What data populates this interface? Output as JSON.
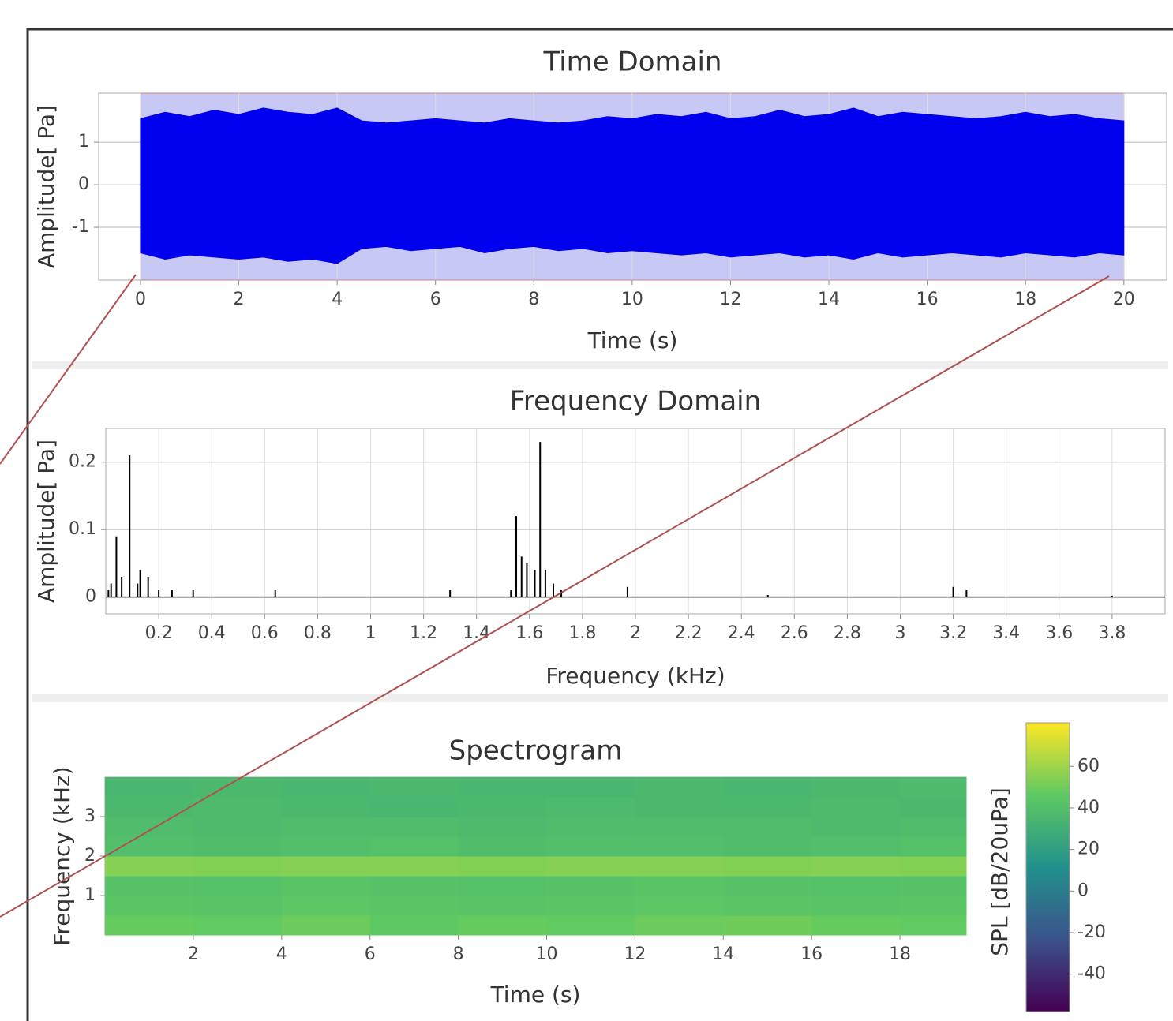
{
  "chart_data": [
    {
      "type": "envelope",
      "title": "Time Domain",
      "x_label": "Time (s)",
      "y_label": "Amplitude[ Pa]",
      "x": [
        0,
        0.5,
        1,
        1.5,
        2,
        2.5,
        3,
        3.5,
        4,
        4.5,
        5,
        5.5,
        6,
        6.5,
        7,
        7.5,
        8,
        8.5,
        9,
        9.5,
        10,
        10.5,
        11,
        11.5,
        12,
        12.5,
        13,
        13.5,
        14,
        14.5,
        15,
        15.5,
        16,
        16.5,
        17,
        17.5,
        18,
        18.5,
        19,
        19.5,
        20
      ],
      "upper": [
        1.55,
        1.7,
        1.6,
        1.75,
        1.65,
        1.8,
        1.7,
        1.65,
        1.8,
        1.5,
        1.45,
        1.5,
        1.55,
        1.5,
        1.45,
        1.55,
        1.5,
        1.45,
        1.5,
        1.6,
        1.55,
        1.65,
        1.6,
        1.7,
        1.55,
        1.6,
        1.75,
        1.6,
        1.65,
        1.8,
        1.6,
        1.7,
        1.65,
        1.6,
        1.55,
        1.6,
        1.7,
        1.6,
        1.65,
        1.55,
        1.5
      ],
      "lower": [
        -1.6,
        -1.75,
        -1.65,
        -1.7,
        -1.75,
        -1.7,
        -1.8,
        -1.75,
        -1.85,
        -1.5,
        -1.45,
        -1.55,
        -1.5,
        -1.45,
        -1.6,
        -1.5,
        -1.45,
        -1.55,
        -1.5,
        -1.6,
        -1.55,
        -1.6,
        -1.65,
        -1.6,
        -1.7,
        -1.65,
        -1.6,
        -1.7,
        -1.65,
        -1.75,
        -1.6,
        -1.7,
        -1.65,
        -1.6,
        -1.65,
        -1.7,
        -1.6,
        -1.65,
        -1.7,
        -1.6,
        -1.65
      ],
      "color": "#0000ee",
      "selection": [
        0,
        20
      ],
      "selection_color": "#c8c8f4",
      "xlim": [
        -0.85,
        20.87
      ],
      "ylim": [
        -2.24,
        2.15
      ],
      "xticks": [
        0,
        2,
        4,
        6,
        8,
        10,
        12,
        14,
        16,
        18,
        20
      ],
      "yticks": [
        -1,
        0,
        1
      ],
      "grid": true
    },
    {
      "type": "stem",
      "title": "Frequency Domain",
      "x_label": "Frequency (kHz)",
      "y_label": "Amplitude[ Pa]",
      "x": [
        0.01,
        0.02,
        0.04,
        0.06,
        0.09,
        0.12,
        0.13,
        0.16,
        0.2,
        0.25,
        0.33,
        0.64,
        1.3,
        1.53,
        1.55,
        1.57,
        1.59,
        1.62,
        1.64,
        1.66,
        1.69,
        1.72,
        1.97,
        2.5,
        3.2,
        3.25,
        3.8
      ],
      "values": [
        0.01,
        0.02,
        0.09,
        0.03,
        0.21,
        0.02,
        0.04,
        0.03,
        0.01,
        0.01,
        0.01,
        0.01,
        0.01,
        0.01,
        0.12,
        0.06,
        0.05,
        0.04,
        0.23,
        0.04,
        0.02,
        0.01,
        0.015,
        0.003,
        0.015,
        0.01,
        0.002
      ],
      "color": "#000000",
      "xlim": [
        0,
        4.0
      ],
      "ylim": [
        -0.025,
        0.25
      ],
      "xticks": [
        0.2,
        0.4,
        0.6,
        0.8,
        1,
        1.2,
        1.4,
        1.6,
        1.8,
        2,
        2.2,
        2.4,
        2.6,
        2.8,
        3,
        3.2,
        3.4,
        3.6,
        3.8
      ],
      "yticks": [
        0,
        0.1,
        0.2
      ],
      "grid": true
    },
    {
      "type": "heatmap",
      "title": "Spectrogram",
      "x_label": "Time (s)",
      "y_label": "Frequency (kHz)",
      "colorbar_label": "SPL [dB/20uPa]",
      "x": [
        0,
        2,
        4,
        6,
        8,
        10,
        12,
        14,
        16,
        18,
        19.5
      ],
      "y": [
        0,
        0.5,
        1,
        1.5,
        2,
        2.5,
        3,
        3.5,
        4
      ],
      "z": [
        [
          48,
          47,
          49,
          46,
          48,
          47,
          49,
          50,
          48,
          47
        ],
        [
          44,
          43,
          45,
          44,
          43,
          44,
          45,
          44,
          43,
          44
        ],
        [
          42,
          41,
          43,
          42,
          41,
          42,
          43,
          42,
          41,
          42
        ],
        [
          55,
          54,
          55,
          55,
          54,
          55,
          55,
          54,
          55,
          54
        ],
        [
          40,
          39,
          40,
          41,
          39,
          40,
          40,
          39,
          40,
          41
        ],
        [
          38,
          37,
          38,
          38,
          37,
          38,
          39,
          38,
          37,
          38
        ],
        [
          36,
          37,
          36,
          35,
          36,
          37,
          36,
          36,
          37,
          36
        ],
        [
          35,
          36,
          35,
          36,
          35,
          35,
          36,
          35,
          36,
          37
        ]
      ],
      "colormap": "viridis",
      "clim": [
        -58,
        81
      ],
      "cticks": [
        -40,
        -20,
        0,
        20,
        40,
        60
      ],
      "xlim": [
        0,
        19.5
      ],
      "ylim": [
        0,
        4
      ],
      "xticks": [
        2,
        4,
        6,
        8,
        10,
        12,
        14,
        16,
        18
      ],
      "yticks": [
        1,
        2,
        3
      ]
    }
  ]
}
